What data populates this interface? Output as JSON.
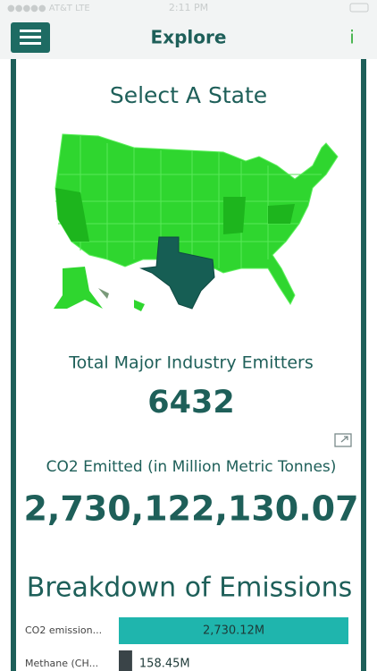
{
  "status_bar": {
    "carrier": "●●●●● AT&T  LTE",
    "time": "2:11 PM"
  },
  "header": {
    "title": "Explore",
    "info": "i"
  },
  "map": {
    "title": "Select A State"
  },
  "kpis": [
    {
      "label": "Total Major Industry Emitters",
      "value": "6432"
    },
    {
      "label": "CO2 Emitted (in Million Metric Tonnes)",
      "value": "2,730,122,130.07"
    }
  ],
  "breakdown": {
    "title": "Breakdown of Emissions",
    "categories": [
      "CO2 emission...",
      "Methane (CH..."
    ],
    "values": [
      2730.12,
      158.45
    ],
    "value_labels": [
      "2,730.12M",
      "158.45M"
    ],
    "colors": [
      "#1fb5ad",
      "#3a4448"
    ]
  }
}
